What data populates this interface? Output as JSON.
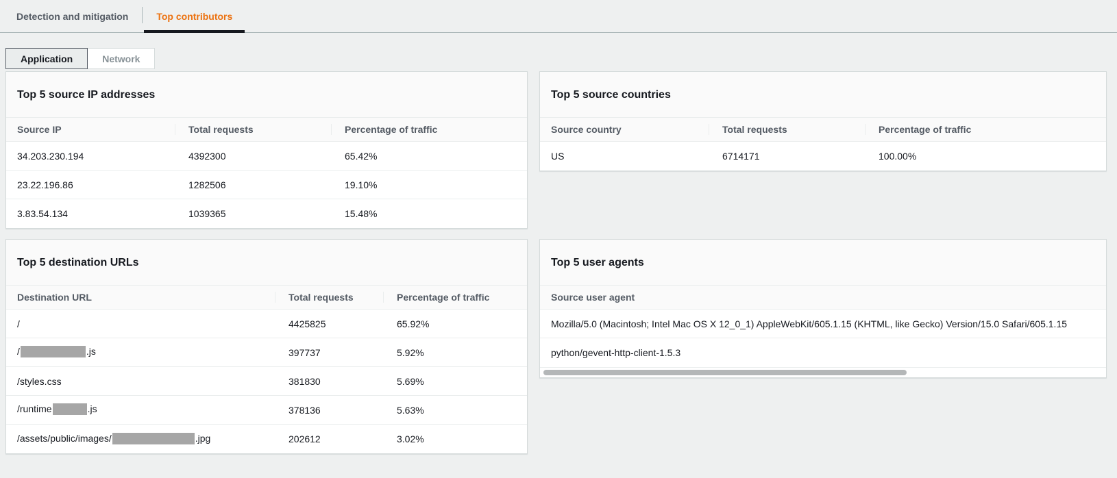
{
  "tabs": [
    {
      "label": "Detection and mitigation",
      "active": false
    },
    {
      "label": "Top contributors",
      "active": true
    }
  ],
  "traffic_toggle": [
    {
      "label": "Application",
      "selected": true
    },
    {
      "label": "Network",
      "selected": false
    }
  ],
  "panels": {
    "source_ips": {
      "title": "Top 5 source IP addresses",
      "columns": [
        "Source IP",
        "Total requests",
        "Percentage of traffic"
      ],
      "rows": [
        [
          "34.203.230.194",
          "4392300",
          "65.42%"
        ],
        [
          "23.22.196.86",
          "1282506",
          "19.10%"
        ],
        [
          "3.83.54.134",
          "1039365",
          "15.48%"
        ]
      ]
    },
    "source_countries": {
      "title": "Top 5 source countries",
      "columns": [
        "Source country",
        "Total requests",
        "Percentage of traffic"
      ],
      "rows": [
        [
          "US",
          "6714171",
          "100.00%"
        ]
      ]
    },
    "destination_urls": {
      "title": "Top 5 destination URLs",
      "columns": [
        "Destination URL",
        "Total requests",
        "Percentage of traffic"
      ],
      "rows": [
        [
          [
            {
              "text": "/"
            }
          ],
          "4425825",
          "65.92%"
        ],
        [
          [
            {
              "text": "/"
            },
            {
              "redacted": 95
            },
            {
              "text": ".js"
            }
          ],
          "397737",
          "5.92%"
        ],
        [
          [
            {
              "text": "/styles.css"
            }
          ],
          "381830",
          "5.69%"
        ],
        [
          [
            {
              "text": "/runtime"
            },
            {
              "redacted": 50
            },
            {
              "text": ".js"
            }
          ],
          "378136",
          "5.63%"
        ],
        [
          [
            {
              "text": "/assets/public/images/"
            },
            {
              "redacted": 120
            },
            {
              "text": ".jpg"
            }
          ],
          "202612",
          "3.02%"
        ]
      ]
    },
    "user_agents": {
      "title": "Top 5 user agents",
      "columns": [
        "Source user agent"
      ],
      "rows": [
        [
          "Mozilla/5.0 (Macintosh; Intel Mac OS X 12_0_1) AppleWebKit/605.1.15 (KHTML, like Gecko) Version/15.0 Safari/605.1.15"
        ],
        [
          "python/gevent-http-client-1.5.3"
        ]
      ],
      "has_horizontal_scrollbar": true
    }
  },
  "colors": {
    "accent_orange": "#ec7211",
    "active_tab_underline": "#16191f",
    "page_background": "#eef0f0",
    "panel_border": "#d5dbdb",
    "row_divider": "#eaeded",
    "header_background": "#fafafa",
    "muted_text": "#545b64",
    "disabled_text": "#879196",
    "redaction_gray": "#a6a6a6",
    "scrollbar_thumb": "#b4b7b8"
  }
}
